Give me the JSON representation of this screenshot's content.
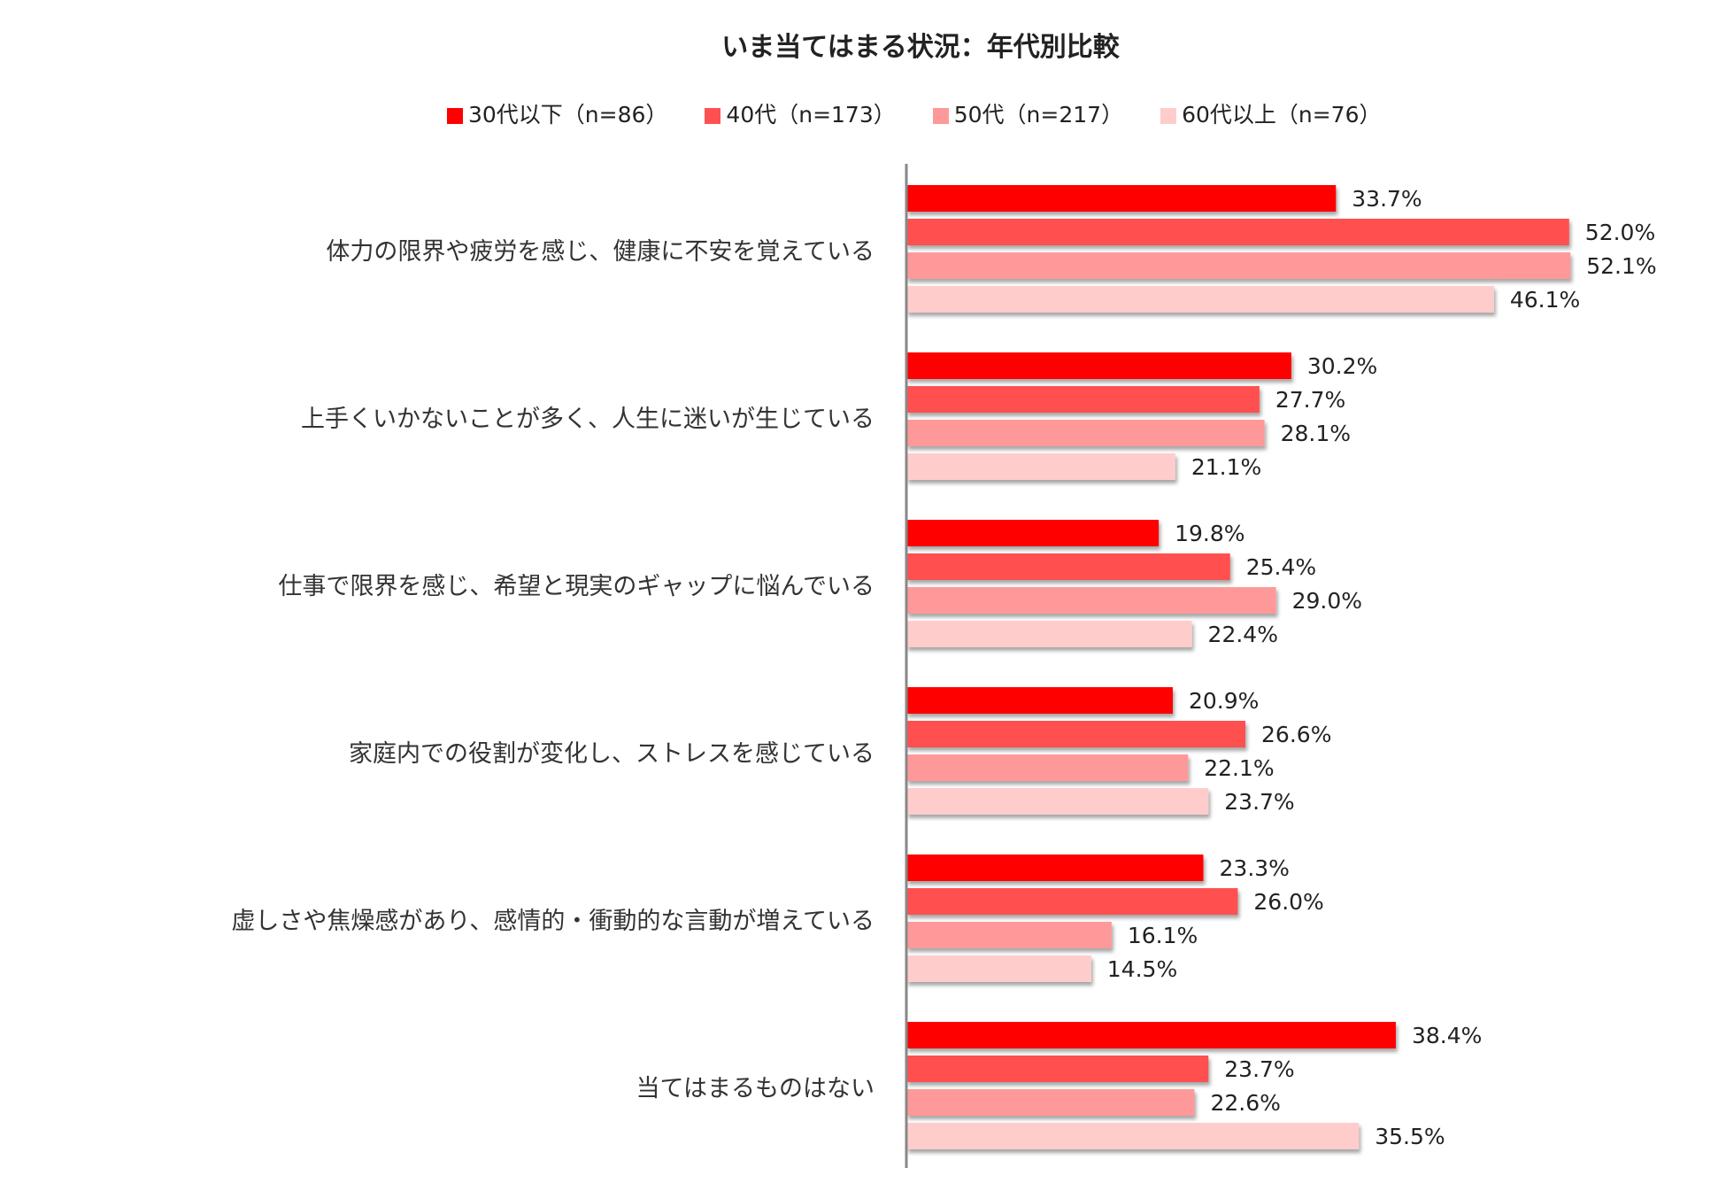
{
  "chart_data": {
    "type": "bar",
    "orientation": "horizontal",
    "title": "いま当てはまる状況：年代別比較",
    "categories": [
      "体力の限界や疲労を感じ、健康に不安を覚えている",
      "上手くいかないことが多く、人生に迷いが生じている",
      "仕事で限界を感じ、希望と現実のギャップに悩んでいる",
      "家庭内での役割が変化し、ストレスを感じている",
      "虚しさや焦燥感があり、感情的・衝動的な言動が増えている",
      "当てはまるものはない"
    ],
    "series": [
      {
        "name": "30代以下（n=86）",
        "color": "#ff0000",
        "values": [
          33.7,
          30.2,
          19.8,
          20.9,
          23.3,
          38.4
        ]
      },
      {
        "name": "40代（n=173）",
        "color": "#ff5050",
        "values": [
          52.0,
          27.7,
          25.4,
          26.6,
          26.0,
          23.7
        ]
      },
      {
        "name": "50代（n=217）",
        "color": "#ff9999",
        "values": [
          52.1,
          28.1,
          29.0,
          22.1,
          16.1,
          22.6
        ]
      },
      {
        "name": "60代以上（n=76）",
        "color": "#ffcccc",
        "values": [
          46.1,
          21.1,
          22.4,
          23.7,
          14.5,
          35.5
        ]
      }
    ],
    "value_format": "%",
    "legend_position": "top",
    "grid": false
  }
}
